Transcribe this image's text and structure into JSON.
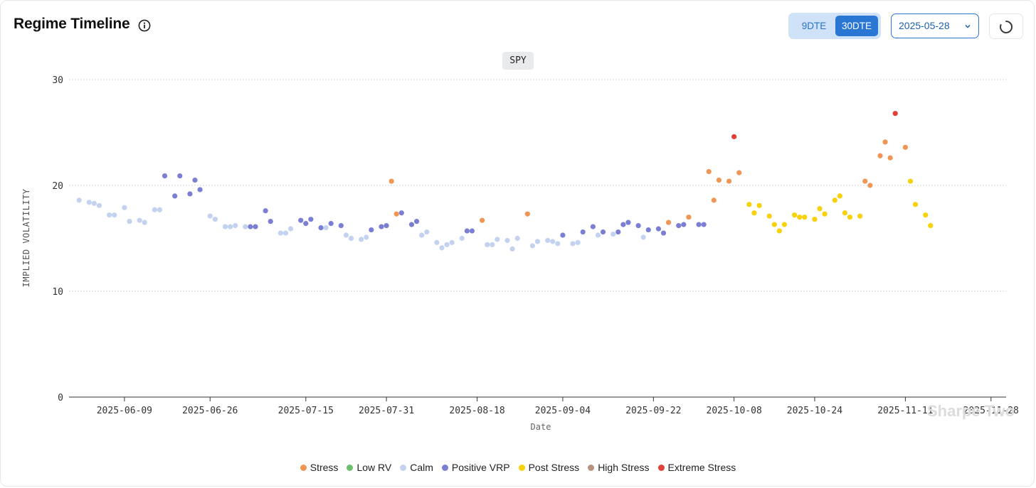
{
  "header": {
    "title": "Regime Timeline",
    "dte_options": [
      "9DTE",
      "30DTE"
    ],
    "dte_selected": "30DTE",
    "date_value": "2025-05-28"
  },
  "ticker": "SPY",
  "watermark": "Sharpe Two",
  "colors": {
    "Stress": "#ef9654",
    "Low RV": "#6dbf6d",
    "Calm": "#c3d3ef",
    "Positive VRP": "#7b7fd4",
    "Post Stress": "#f7d20a",
    "High Stress": "#b8927f",
    "Extreme Stress": "#e04038"
  },
  "chart_data": {
    "type": "scatter",
    "title": "",
    "xlabel": "Date",
    "ylabel": "IMPLIED VOLATILITY",
    "ylim": [
      0,
      30
    ],
    "yticks": [
      0,
      10,
      20,
      30
    ],
    "xlim": [
      "2025-05-29",
      "2025-12-01"
    ],
    "xticks": [
      "2025-06-09",
      "2025-06-26",
      "2025-07-15",
      "2025-07-31",
      "2025-08-18",
      "2025-09-04",
      "2025-09-22",
      "2025-10-08",
      "2025-10-24",
      "2025-11-11",
      "2025-11-28"
    ],
    "grid": "horizontal dotted",
    "legend_position": "bottom",
    "legend": [
      "Stress",
      "Low RV",
      "Calm",
      "Positive VRP",
      "Post Stress",
      "High Stress",
      "Extreme Stress"
    ],
    "points": [
      {
        "x": "2025-05-31",
        "y": 18.6,
        "regime": "Calm"
      },
      {
        "x": "2025-06-02",
        "y": 18.4,
        "regime": "Calm"
      },
      {
        "x": "2025-06-03",
        "y": 18.3,
        "regime": "Calm"
      },
      {
        "x": "2025-06-04",
        "y": 18.1,
        "regime": "Calm"
      },
      {
        "x": "2025-06-06",
        "y": 17.2,
        "regime": "Calm"
      },
      {
        "x": "2025-06-07",
        "y": 17.2,
        "regime": "Calm"
      },
      {
        "x": "2025-06-09",
        "y": 17.9,
        "regime": "Calm"
      },
      {
        "x": "2025-06-10",
        "y": 16.6,
        "regime": "Calm"
      },
      {
        "x": "2025-06-12",
        "y": 16.7,
        "regime": "Calm"
      },
      {
        "x": "2025-06-13",
        "y": 16.5,
        "regime": "Calm"
      },
      {
        "x": "2025-06-15",
        "y": 17.7,
        "regime": "Calm"
      },
      {
        "x": "2025-06-16",
        "y": 17.7,
        "regime": "Calm"
      },
      {
        "x": "2025-06-17",
        "y": 20.9,
        "regime": "Positive VRP"
      },
      {
        "x": "2025-06-19",
        "y": 19.0,
        "regime": "Positive VRP"
      },
      {
        "x": "2025-06-20",
        "y": 20.9,
        "regime": "Positive VRP"
      },
      {
        "x": "2025-06-22",
        "y": 19.2,
        "regime": "Positive VRP"
      },
      {
        "x": "2025-06-23",
        "y": 20.5,
        "regime": "Positive VRP"
      },
      {
        "x": "2025-06-24",
        "y": 19.6,
        "regime": "Positive VRP"
      },
      {
        "x": "2025-06-26",
        "y": 17.1,
        "regime": "Calm"
      },
      {
        "x": "2025-06-27",
        "y": 16.8,
        "regime": "Calm"
      },
      {
        "x": "2025-06-29",
        "y": 16.1,
        "regime": "Calm"
      },
      {
        "x": "2025-06-30",
        "y": 16.1,
        "regime": "Calm"
      },
      {
        "x": "2025-07-01",
        "y": 16.2,
        "regime": "Calm"
      },
      {
        "x": "2025-07-03",
        "y": 16.1,
        "regime": "Calm"
      },
      {
        "x": "2025-07-04",
        "y": 16.1,
        "regime": "Positive VRP"
      },
      {
        "x": "2025-07-05",
        "y": 16.1,
        "regime": "Positive VRP"
      },
      {
        "x": "2025-07-07",
        "y": 17.6,
        "regime": "Positive VRP"
      },
      {
        "x": "2025-07-08",
        "y": 16.6,
        "regime": "Positive VRP"
      },
      {
        "x": "2025-07-10",
        "y": 15.5,
        "regime": "Calm"
      },
      {
        "x": "2025-07-11",
        "y": 15.5,
        "regime": "Calm"
      },
      {
        "x": "2025-07-12",
        "y": 15.9,
        "regime": "Calm"
      },
      {
        "x": "2025-07-14",
        "y": 16.7,
        "regime": "Positive VRP"
      },
      {
        "x": "2025-07-15",
        "y": 16.4,
        "regime": "Positive VRP"
      },
      {
        "x": "2025-07-16",
        "y": 16.8,
        "regime": "Positive VRP"
      },
      {
        "x": "2025-07-18",
        "y": 16.0,
        "regime": "Positive VRP"
      },
      {
        "x": "2025-07-19",
        "y": 16.0,
        "regime": "Calm"
      },
      {
        "x": "2025-07-20",
        "y": 16.4,
        "regime": "Positive VRP"
      },
      {
        "x": "2025-07-22",
        "y": 16.2,
        "regime": "Positive VRP"
      },
      {
        "x": "2025-07-23",
        "y": 15.3,
        "regime": "Calm"
      },
      {
        "x": "2025-07-24",
        "y": 15.0,
        "regime": "Calm"
      },
      {
        "x": "2025-07-26",
        "y": 14.9,
        "regime": "Calm"
      },
      {
        "x": "2025-07-27",
        "y": 15.1,
        "regime": "Calm"
      },
      {
        "x": "2025-07-28",
        "y": 15.8,
        "regime": "Positive VRP"
      },
      {
        "x": "2025-07-30",
        "y": 16.1,
        "regime": "Positive VRP"
      },
      {
        "x": "2025-07-31",
        "y": 16.2,
        "regime": "Positive VRP"
      },
      {
        "x": "2025-08-01",
        "y": 20.4,
        "regime": "Stress"
      },
      {
        "x": "2025-08-02",
        "y": 17.3,
        "regime": "Stress"
      },
      {
        "x": "2025-08-03",
        "y": 17.4,
        "regime": "Positive VRP"
      },
      {
        "x": "2025-08-05",
        "y": 16.3,
        "regime": "Positive VRP"
      },
      {
        "x": "2025-08-06",
        "y": 16.6,
        "regime": "Positive VRP"
      },
      {
        "x": "2025-08-07",
        "y": 15.3,
        "regime": "Calm"
      },
      {
        "x": "2025-08-08",
        "y": 15.6,
        "regime": "Calm"
      },
      {
        "x": "2025-08-10",
        "y": 14.6,
        "regime": "Calm"
      },
      {
        "x": "2025-08-11",
        "y": 14.1,
        "regime": "Calm"
      },
      {
        "x": "2025-08-12",
        "y": 14.4,
        "regime": "Calm"
      },
      {
        "x": "2025-08-13",
        "y": 14.6,
        "regime": "Calm"
      },
      {
        "x": "2025-08-15",
        "y": 15.0,
        "regime": "Calm"
      },
      {
        "x": "2025-08-16",
        "y": 15.7,
        "regime": "Positive VRP"
      },
      {
        "x": "2025-08-17",
        "y": 15.7,
        "regime": "Positive VRP"
      },
      {
        "x": "2025-08-19",
        "y": 16.7,
        "regime": "Stress"
      },
      {
        "x": "2025-08-20",
        "y": 14.4,
        "regime": "Calm"
      },
      {
        "x": "2025-08-21",
        "y": 14.4,
        "regime": "Calm"
      },
      {
        "x": "2025-08-22",
        "y": 14.9,
        "regime": "Calm"
      },
      {
        "x": "2025-08-24",
        "y": 14.8,
        "regime": "Calm"
      },
      {
        "x": "2025-08-25",
        "y": 14.0,
        "regime": "Calm"
      },
      {
        "x": "2025-08-26",
        "y": 15.0,
        "regime": "Calm"
      },
      {
        "x": "2025-08-28",
        "y": 17.3,
        "regime": "Stress"
      },
      {
        "x": "2025-08-29",
        "y": 14.3,
        "regime": "Calm"
      },
      {
        "x": "2025-08-30",
        "y": 14.7,
        "regime": "Calm"
      },
      {
        "x": "2025-09-01",
        "y": 14.8,
        "regime": "Calm"
      },
      {
        "x": "2025-09-02",
        "y": 14.7,
        "regime": "Calm"
      },
      {
        "x": "2025-09-03",
        "y": 14.5,
        "regime": "Calm"
      },
      {
        "x": "2025-09-04",
        "y": 15.3,
        "regime": "Positive VRP"
      },
      {
        "x": "2025-09-06",
        "y": 14.5,
        "regime": "Calm"
      },
      {
        "x": "2025-09-07",
        "y": 14.6,
        "regime": "Calm"
      },
      {
        "x": "2025-09-08",
        "y": 15.6,
        "regime": "Positive VRP"
      },
      {
        "x": "2025-09-10",
        "y": 16.1,
        "regime": "Positive VRP"
      },
      {
        "x": "2025-09-11",
        "y": 15.3,
        "regime": "Calm"
      },
      {
        "x": "2025-09-12",
        "y": 15.6,
        "regime": "Positive VRP"
      },
      {
        "x": "2025-09-14",
        "y": 15.4,
        "regime": "Calm"
      },
      {
        "x": "2025-09-15",
        "y": 15.6,
        "regime": "Positive VRP"
      },
      {
        "x": "2025-09-16",
        "y": 16.3,
        "regime": "Positive VRP"
      },
      {
        "x": "2025-09-17",
        "y": 16.5,
        "regime": "Positive VRP"
      },
      {
        "x": "2025-09-19",
        "y": 16.2,
        "regime": "Positive VRP"
      },
      {
        "x": "2025-09-20",
        "y": 15.1,
        "regime": "Calm"
      },
      {
        "x": "2025-09-21",
        "y": 15.8,
        "regime": "Positive VRP"
      },
      {
        "x": "2025-09-23",
        "y": 15.9,
        "regime": "Positive VRP"
      },
      {
        "x": "2025-09-24",
        "y": 15.5,
        "regime": "Positive VRP"
      },
      {
        "x": "2025-09-25",
        "y": 16.5,
        "regime": "Stress"
      },
      {
        "x": "2025-09-27",
        "y": 16.2,
        "regime": "Positive VRP"
      },
      {
        "x": "2025-09-28",
        "y": 16.3,
        "regime": "Positive VRP"
      },
      {
        "x": "2025-09-29",
        "y": 17.0,
        "regime": "Stress"
      },
      {
        "x": "2025-10-01",
        "y": 16.3,
        "regime": "Positive VRP"
      },
      {
        "x": "2025-10-02",
        "y": 16.3,
        "regime": "Positive VRP"
      },
      {
        "x": "2025-10-03",
        "y": 21.3,
        "regime": "Stress"
      },
      {
        "x": "2025-10-04",
        "y": 18.6,
        "regime": "Stress"
      },
      {
        "x": "2025-10-05",
        "y": 20.5,
        "regime": "Stress"
      },
      {
        "x": "2025-10-07",
        "y": 20.4,
        "regime": "Stress"
      },
      {
        "x": "2025-10-08",
        "y": 24.6,
        "regime": "Extreme Stress"
      },
      {
        "x": "2025-10-09",
        "y": 21.2,
        "regime": "Stress"
      },
      {
        "x": "2025-10-11",
        "y": 18.2,
        "regime": "Post Stress"
      },
      {
        "x": "2025-10-12",
        "y": 17.4,
        "regime": "Post Stress"
      },
      {
        "x": "2025-10-13",
        "y": 18.1,
        "regime": "Post Stress"
      },
      {
        "x": "2025-10-15",
        "y": 17.1,
        "regime": "Post Stress"
      },
      {
        "x": "2025-10-16",
        "y": 16.3,
        "regime": "Post Stress"
      },
      {
        "x": "2025-10-17",
        "y": 15.7,
        "regime": "Post Stress"
      },
      {
        "x": "2025-10-18",
        "y": 16.3,
        "regime": "Post Stress"
      },
      {
        "x": "2025-10-20",
        "y": 17.2,
        "regime": "Post Stress"
      },
      {
        "x": "2025-10-21",
        "y": 17.0,
        "regime": "Post Stress"
      },
      {
        "x": "2025-10-22",
        "y": 17.0,
        "regime": "Post Stress"
      },
      {
        "x": "2025-10-24",
        "y": 16.8,
        "regime": "Post Stress"
      },
      {
        "x": "2025-10-25",
        "y": 17.8,
        "regime": "Post Stress"
      },
      {
        "x": "2025-10-26",
        "y": 17.3,
        "regime": "Post Stress"
      },
      {
        "x": "2025-10-28",
        "y": 18.6,
        "regime": "Post Stress"
      },
      {
        "x": "2025-10-29",
        "y": 19.0,
        "regime": "Post Stress"
      },
      {
        "x": "2025-10-30",
        "y": 17.4,
        "regime": "Post Stress"
      },
      {
        "x": "2025-10-31",
        "y": 17.0,
        "regime": "Post Stress"
      },
      {
        "x": "2025-11-02",
        "y": 17.1,
        "regime": "Post Stress"
      },
      {
        "x": "2025-11-03",
        "y": 20.4,
        "regime": "Stress"
      },
      {
        "x": "2025-11-04",
        "y": 20.0,
        "regime": "Stress"
      },
      {
        "x": "2025-11-06",
        "y": 22.8,
        "regime": "Stress"
      },
      {
        "x": "2025-11-07",
        "y": 24.1,
        "regime": "Stress"
      },
      {
        "x": "2025-11-08",
        "y": 22.6,
        "regime": "Stress"
      },
      {
        "x": "2025-11-09",
        "y": 26.8,
        "regime": "Extreme Stress"
      },
      {
        "x": "2025-11-11",
        "y": 23.6,
        "regime": "Stress"
      },
      {
        "x": "2025-11-12",
        "y": 20.4,
        "regime": "Post Stress"
      },
      {
        "x": "2025-11-13",
        "y": 18.2,
        "regime": "Post Stress"
      },
      {
        "x": "2025-11-15",
        "y": 17.2,
        "regime": "Post Stress"
      },
      {
        "x": "2025-11-16",
        "y": 16.2,
        "regime": "Post Stress"
      }
    ]
  }
}
